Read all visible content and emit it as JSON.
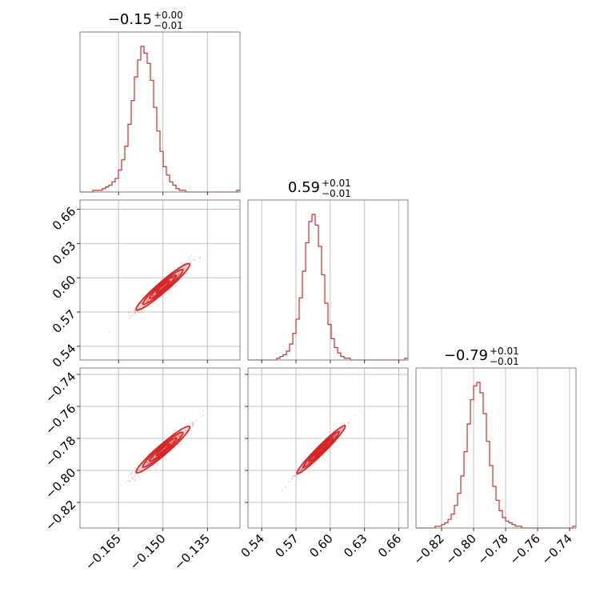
{
  "chart_data": {
    "type": "corner",
    "color": "#d62728",
    "parameters": [
      {
        "median": -0.15,
        "title_value": "−0.15",
        "title_plus": "+0.00",
        "title_minus": "−0.01",
        "range": [
          -0.178,
          -0.124
        ],
        "sigma": 0.0045,
        "ticks": [
          -0.165,
          -0.15,
          -0.135
        ],
        "tick_labels": [
          "−0.165",
          "−0.150",
          "−0.135"
        ]
      },
      {
        "median": 0.592,
        "title_value": "0.59",
        "title_plus": "+0.01",
        "title_minus": "−0.01",
        "range": [
          0.528,
          0.668
        ],
        "sigma": 0.0105,
        "ticks": [
          0.54,
          0.57,
          0.6,
          0.63,
          0.66
        ],
        "tick_labels": [
          "0.54",
          "0.57",
          "0.60",
          "0.63",
          "0.66"
        ]
      },
      {
        "median": -0.787,
        "title_value": "−0.79",
        "title_plus": "+0.01",
        "title_minus": "−0.01",
        "range": [
          -0.836,
          -0.736
        ],
        "sigma": 0.0075,
        "ticks": [
          -0.82,
          -0.8,
          -0.78,
          -0.76,
          -0.74
        ],
        "tick_labels": [
          "−0.82",
          "−0.80",
          "−0.78",
          "−0.76",
          "−0.74"
        ]
      }
    ],
    "histograms": [
      {
        "param": 0,
        "bin_start": -0.178,
        "bin_width": 0.00108,
        "counts": [
          0,
          0,
          0,
          0,
          1,
          1,
          1,
          2,
          3,
          4,
          6,
          8,
          13,
          19,
          27,
          40,
          54,
          68,
          78,
          86,
          82,
          76,
          66,
          50,
          36,
          24,
          15,
          10,
          6,
          4,
          2,
          1,
          1,
          0,
          0,
          0,
          0,
          0,
          0,
          0,
          0,
          0,
          0,
          0,
          0,
          0,
          0,
          0,
          0,
          1
        ]
      },
      {
        "param": 1,
        "bin_start": 0.528,
        "bin_width": 0.0028,
        "counts": [
          0,
          0,
          0,
          0,
          0,
          0,
          0,
          0,
          0,
          1,
          2,
          3,
          5,
          9,
          15,
          23,
          35,
          50,
          66,
          78,
          82,
          76,
          64,
          48,
          32,
          20,
          12,
          7,
          4,
          2,
          1,
          1,
          0,
          0,
          0,
          0,
          0,
          0,
          0,
          0,
          0,
          0,
          0,
          0,
          0,
          0,
          0,
          0,
          0,
          1
        ]
      },
      {
        "param": 2,
        "bin_start": -0.836,
        "bin_width": 0.002,
        "counts": [
          0,
          0,
          0,
          0,
          0,
          0,
          1,
          1,
          2,
          3,
          5,
          8,
          13,
          20,
          30,
          44,
          60,
          74,
          82,
          84,
          78,
          66,
          50,
          36,
          24,
          16,
          10,
          6,
          4,
          3,
          2,
          1,
          1,
          0,
          0,
          0,
          0,
          0,
          0,
          0,
          0,
          0,
          0,
          0,
          0,
          0,
          0,
          0,
          0,
          1
        ]
      }
    ],
    "scatter_pairs": [
      {
        "x_param": 0,
        "y_param": 1,
        "correlation": 0.96
      },
      {
        "x_param": 0,
        "y_param": 2,
        "correlation": 0.96
      },
      {
        "x_param": 1,
        "y_param": 2,
        "correlation": 0.995
      }
    ]
  }
}
